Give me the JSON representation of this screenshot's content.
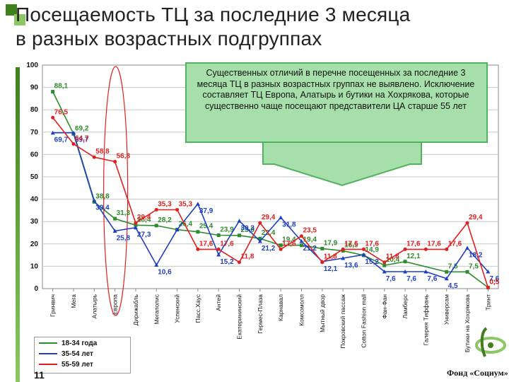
{
  "title": {
    "line1": "Посещаемость ТЦ за последние 3 месяца",
    "line2": "в разных возрастных подгруппах"
  },
  "callout": {
    "text": "Существенных отличий в перечне посещенных за последние 3 месяца ТЦ в разных возрастных группах не выявлено. Исключение составляет ТЦ Европа, Алатырь и бутики на Хохрякова, которые существенно чаще посещают представители ЦА старше 55 лет"
  },
  "page_number": "11",
  "footer_brand": "Фонд «Социум»",
  "colors": {
    "accent_green": "#3f7f1e",
    "series_18_34": "#2e8b2e",
    "series_35_54": "#1f3fbf",
    "series_55_59": "#e02020",
    "callout_fill": "#a7dfaa",
    "callout_border": "#52b25f"
  },
  "chart_data": {
    "type": "line",
    "categories": [
      "Гринвич",
      "Мега",
      "Алатырь",
      "Европа",
      "Дирижабль",
      "Мегаполис",
      "Успенский",
      "Пасс.Хаус",
      "Антей",
      "Екатерининский",
      "Гермес-Плаза",
      "Карнавал",
      "Комсомолл",
      "Мытный двор",
      "Покровский пассаж",
      "Cotton Fashion mall",
      "Фан-Фан",
      "Ламберс",
      "Галерея Тиффань",
      "Универсам",
      "Бутики на Хохрякова",
      "Тринт"
    ],
    "yticks": [
      "0",
      "10",
      "20",
      "30",
      "40",
      "50",
      "60",
      "70",
      "80",
      "90",
      "100"
    ],
    "ylim": [
      0,
      100
    ],
    "grid": true,
    "series": [
      {
        "name": "18-34 года",
        "color": "#2e8b2e",
        "values": [
          88.1,
          69.2,
          38.8,
          31.3,
          28.4,
          28.2,
          26.4,
          25.4,
          23.9,
          23.8,
          22.4,
          19.4,
          19.4,
          17.9,
          16.9,
          14.9,
          10.4,
          12.1,
          null,
          7.5,
          7.5,
          0.5
        ],
        "labels": [
          "88,1",
          "69,2",
          "38,8",
          "31,3",
          "28,4",
          "28,2",
          "26,4",
          "25,4",
          "23,9",
          "23,8",
          "22,4",
          "19,4",
          "19,4",
          "17,9",
          "16,9",
          "14,9",
          "10,4",
          "12,1",
          "",
          "7,5",
          "7,5",
          "0,5"
        ]
      },
      {
        "name": "35-54 лет",
        "color": "#1f3fbf",
        "values": [
          69.7,
          69.7,
          39.4,
          25.8,
          27.3,
          10.6,
          26.4,
          37.9,
          15.2,
          30.3,
          21.2,
          31.8,
          21.2,
          12.1,
          13.6,
          15.2,
          7.6,
          7.6,
          7.6,
          4.5,
          18.2,
          7.6
        ],
        "labels": [
          "69,7",
          "69,7",
          "39,4",
          "25,8",
          "27,3",
          "10,6",
          "",
          "37,9",
          "15,2",
          "30,3",
          "21,2",
          "31,8",
          "21,2",
          "12,1",
          "13,6",
          "15,2",
          "7,6",
          "7,6",
          "7,6",
          "4,5",
          "18,2",
          "7,6"
        ]
      },
      {
        "name": "55-59 лет",
        "color": "#e02020",
        "values": [
          76.5,
          64.7,
          58.8,
          56.8,
          29.4,
          35.3,
          35.3,
          17.6,
          17.6,
          11.8,
          29.4,
          17.6,
          23.5,
          11.8,
          17.6,
          17.6,
          11.8,
          17.6,
          17.6,
          17.6,
          29.4,
          0.5
        ],
        "labels": [
          "76,5",
          "64,7",
          "58,8",
          "56,8",
          "29,4",
          "35,3",
          "35,3",
          "17,6",
          "17,6",
          "11,8",
          "29,4",
          "17,6",
          "23,5",
          "11,8",
          "17,6",
          "17,6",
          "11,8",
          "17,6",
          "17,6",
          "17,6",
          "29,4",
          "0,5"
        ]
      }
    ]
  }
}
